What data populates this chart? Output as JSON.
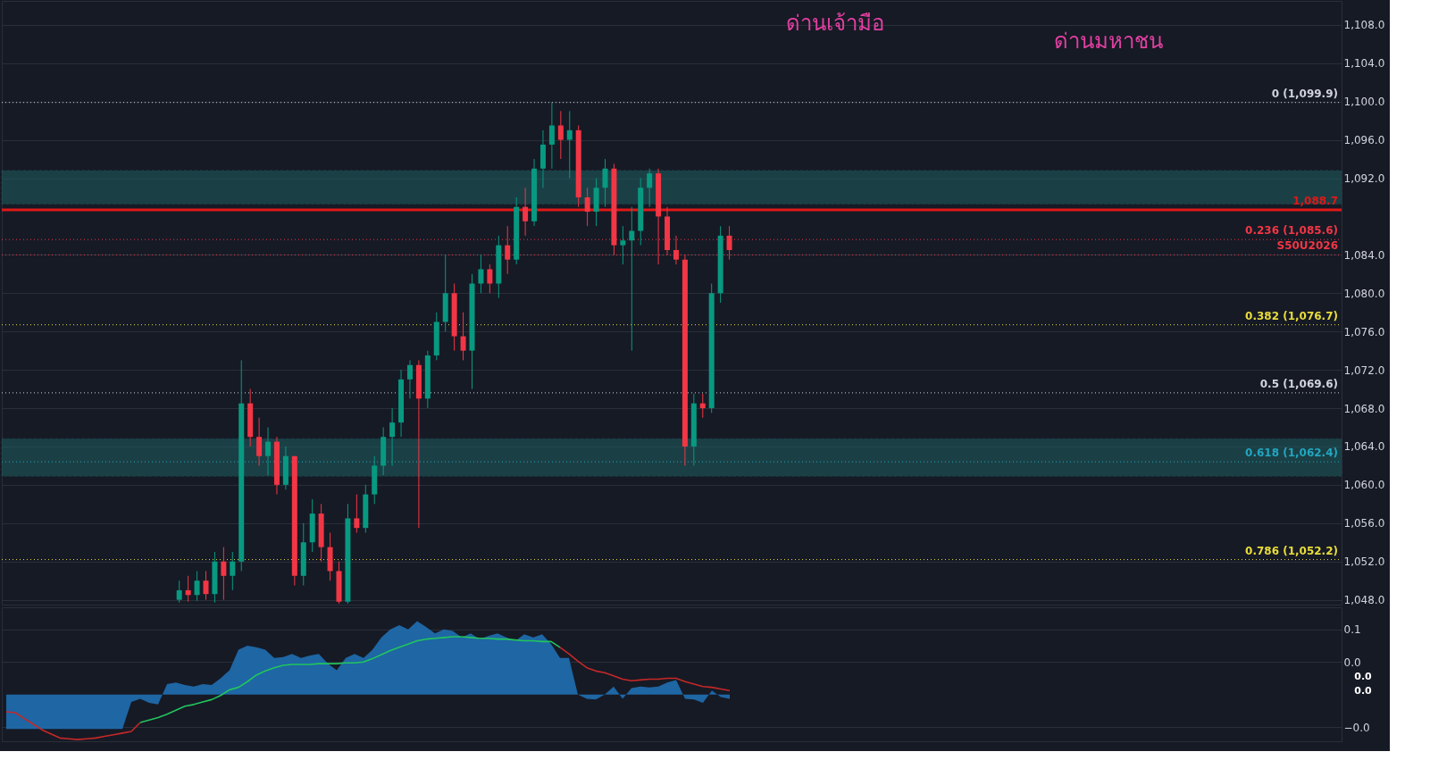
{
  "chart_data": [
    {
      "type": "candlestick",
      "categories": [
        null,
        null,
        null,
        null,
        null,
        null,
        null,
        null,
        null,
        null,
        null,
        null,
        null,
        null,
        null,
        null,
        null,
        null,
        null,
        null,
        null,
        null,
        null,
        null,
        null,
        null,
        null,
        null,
        null,
        null,
        null,
        null,
        null,
        null,
        null,
        null,
        null,
        null,
        null,
        null,
        null,
        null,
        null,
        null,
        null,
        null,
        null,
        null,
        null,
        null,
        null,
        null,
        null,
        null,
        null,
        null,
        null,
        null,
        null,
        null,
        null,
        null,
        null,
        null,
        null,
        null,
        null,
        null,
        null,
        null,
        null,
        null,
        null,
        null,
        null,
        null,
        null,
        null,
        null,
        null,
        null,
        null,
        null,
        null,
        null,
        null,
        null,
        null,
        null,
        null,
        null,
        null,
        null,
        null,
        null,
        null,
        null,
        null,
        null,
        null,
        null,
        null,
        null,
        null,
        null,
        null,
        null,
        null,
        null,
        null,
        null,
        null,
        null,
        null,
        null,
        null,
        null,
        null,
        null,
        null,
        null,
        null,
        null,
        null,
        null,
        null,
        null,
        null,
        null,
        null,
        null,
        null,
        null,
        null,
        null,
        null,
        null,
        null,
        null,
        null,
        null,
        null,
        null,
        null,
        null,
        null,
        null,
        null,
        null,
        null
      ],
      "ohlc": [
        null,
        null,
        null,
        null,
        null,
        null,
        null,
        null,
        null,
        null,
        null,
        null,
        null,
        null,
        null,
        null,
        null,
        null,
        null,
        [
          1048,
          1050,
          1047.7,
          1049
        ],
        [
          1049,
          1050.5,
          1047.8,
          1048.5
        ],
        [
          1048.5,
          1051,
          1047.9,
          1050
        ],
        [
          1050,
          1051,
          1048,
          1048.6
        ],
        [
          1048.6,
          1053,
          1047.7,
          1052
        ],
        [
          1052,
          1053.5,
          1048,
          1050.5
        ],
        [
          1050.5,
          1053,
          1049,
          1052
        ],
        [
          1052,
          1073,
          1051,
          1068.5
        ],
        [
          1068.5,
          1070,
          1064,
          1065
        ],
        [
          1065,
          1067,
          1062,
          1063
        ],
        [
          1063,
          1066,
          1061,
          1064.5
        ],
        [
          1064.5,
          1065,
          1059,
          1060
        ],
        [
          1060,
          1064,
          1059.5,
          1063
        ],
        [
          1063,
          1063,
          1049.5,
          1050.5
        ],
        [
          1050.5,
          1056,
          1049.5,
          1054
        ],
        [
          1054,
          1058.5,
          1053,
          1057
        ],
        [
          1057,
          1058,
          1052,
          1053.5
        ],
        [
          1053.5,
          1055,
          1050,
          1051
        ],
        [
          1051,
          1052,
          1047.6,
          1047.8
        ],
        [
          1047.8,
          1058,
          1047.6,
          1056.5
        ],
        [
          1056.5,
          1059,
          1055,
          1055.5
        ],
        [
          1055.5,
          1060,
          1055,
          1059
        ],
        [
          1059,
          1063,
          1058,
          1062
        ],
        [
          1062,
          1066,
          1061,
          1065
        ],
        [
          1065,
          1068,
          1062,
          1066.5
        ],
        [
          1066.5,
          1072,
          1065,
          1071
        ],
        [
          1071,
          1073,
          1069,
          1072.5
        ],
        [
          1072.5,
          1073,
          1055.5,
          1069
        ],
        [
          1069,
          1074,
          1068,
          1073.5
        ],
        [
          1073.5,
          1078,
          1073,
          1077
        ],
        [
          1077,
          1084,
          1076,
          1080
        ],
        [
          1080,
          1081,
          1074,
          1075.5
        ],
        [
          1075.5,
          1078,
          1073,
          1074
        ],
        [
          1074,
          1082,
          1070,
          1081
        ],
        [
          1081,
          1084,
          1080,
          1082.5
        ],
        [
          1082.5,
          1083,
          1080,
          1081
        ],
        [
          1081,
          1086,
          1079.5,
          1085
        ],
        [
          1085,
          1087,
          1082,
          1083.5
        ],
        [
          1083.5,
          1090,
          1083,
          1089
        ],
        [
          1089,
          1091,
          1086,
          1087.5
        ],
        [
          1087.5,
          1094,
          1087,
          1093
        ],
        [
          1093,
          1097,
          1091,
          1095.5
        ],
        [
          1095.5,
          1099.9,
          1093,
          1097.5
        ],
        [
          1097.5,
          1099,
          1094,
          1096
        ],
        [
          1096,
          1099,
          1092,
          1097
        ],
        [
          1097,
          1097.5,
          1089,
          1090
        ],
        [
          1090,
          1091,
          1087,
          1088.5
        ],
        [
          1088.5,
          1092,
          1087,
          1091
        ],
        [
          1091,
          1094,
          1089,
          1093
        ],
        [
          1093,
          1093.5,
          1084,
          1085
        ],
        [
          1085,
          1087,
          1083,
          1085.5
        ],
        [
          1085.5,
          1089,
          1074,
          1086.5
        ],
        [
          1086.5,
          1092,
          1085,
          1091
        ],
        [
          1091,
          1093,
          1089,
          1092.5
        ],
        [
          1092.5,
          1093,
          1083,
          1088
        ],
        [
          1088,
          1089,
          1084,
          1084.5
        ],
        [
          1084.5,
          1086,
          1083,
          1083.5
        ],
        [
          1083.5,
          1084,
          1062,
          1064
        ],
        [
          1064,
          1069.5,
          1062,
          1068.5
        ],
        [
          1068.5,
          1069.5,
          1067,
          1068
        ],
        [
          1068,
          1081,
          1067.5,
          1080
        ],
        [
          1080,
          1087,
          1079,
          1086
        ],
        [
          1086,
          1087,
          1083.5,
          1084.5
        ],
        null,
        null,
        null,
        null,
        null,
        null,
        null,
        null,
        null,
        null,
        null,
        null,
        null,
        null,
        null,
        null,
        null,
        null,
        null,
        null,
        null,
        null,
        null,
        null,
        null,
        null,
        null,
        null,
        null,
        null,
        null,
        null,
        null,
        null,
        null,
        null,
        null,
        null,
        null,
        null,
        null,
        null,
        null,
        null,
        null,
        null,
        null,
        null,
        null,
        null,
        null,
        null,
        null,
        null,
        null,
        null,
        null,
        null,
        null,
        null,
        null,
        null,
        null,
        null,
        null,
        null,
        null,
        null
      ],
      "colors": [
        null,
        null,
        null,
        null,
        null,
        null,
        null,
        null,
        null,
        null,
        null,
        null,
        null,
        null,
        null,
        null,
        null,
        null,
        null,
        "#089981",
        "#f23645",
        "#089981",
        "#f23645",
        "#089981",
        "#f23645",
        "#089981",
        "#089981",
        "#f23645",
        "#f23645",
        "#089981",
        "#f23645",
        "#089981",
        "#f23645",
        "#089981",
        "#089981",
        "#f23645",
        "#f23645",
        "#f23645",
        "#089981",
        "#f23645",
        "#089981",
        "#089981",
        "#089981",
        "#089981",
        "#089981",
        "#089981",
        "#f23645",
        "#089981",
        "#089981",
        "#089981",
        "#f23645",
        "#f23645",
        "#089981",
        "#089981",
        "#f23645",
        "#089981",
        "#f23645",
        "#089981",
        "#f23645",
        "#089981",
        "#089981",
        "#089981",
        "#f23645",
        "#089981",
        "#f23645",
        "#f23645",
        "#089981",
        "#089981",
        "#f23645",
        "#089981",
        "#089981",
        "#089981",
        "#089981",
        "#f23645",
        "#f23645",
        "#f23645",
        "#f23645",
        "#089981",
        "#f23645",
        "#089981",
        "#089981",
        "#f23645",
        null,
        null,
        null,
        null,
        null,
        null,
        null,
        null,
        null,
        null,
        null,
        null,
        null,
        null,
        null,
        null,
        null,
        null,
        null,
        null,
        null,
        null,
        null,
        null,
        null,
        null,
        null,
        null,
        null,
        null,
        null,
        null,
        null,
        null,
        null,
        null,
        null,
        null,
        null,
        null,
        null,
        null,
        null,
        null,
        null,
        null,
        null,
        null,
        null,
        null,
        null,
        null,
        null,
        null,
        null,
        null,
        null,
        null,
        null,
        null,
        null,
        null,
        null,
        null,
        null,
        null,
        null,
        null
      ],
      "ylim": [
        1047.5,
        1110.5
      ],
      "yticks": [
        {
          "value": 1048,
          "label": "1,048.0"
        },
        {
          "value": 1052,
          "label": "1,052.0"
        },
        {
          "value": 1056,
          "label": "1,056.0"
        },
        {
          "value": 1060,
          "label": "1,060.0"
        },
        {
          "value": 1064,
          "label": "1,064.0"
        },
        {
          "value": 1068,
          "label": "1,068.0"
        },
        {
          "value": 1072,
          "label": "1,072.0"
        },
        {
          "value": 1076,
          "label": "1,076.0"
        },
        {
          "value": 1080,
          "label": "1,080.0"
        },
        {
          "value": 1084,
          "label": "1,084.0"
        },
        {
          "value": 1092,
          "label": "1,092.0"
        },
        {
          "value": 1096,
          "label": "1,096.0"
        },
        {
          "value": 1100,
          "label": "1,100.0"
        },
        {
          "value": 1104,
          "label": "1,104.0"
        },
        {
          "value": 1108,
          "label": "1,108.0"
        }
      ],
      "tick_labels": "y",
      "grid": "y",
      "ref_lines": [
        {
          "axis": "y",
          "value": 1099.9,
          "label": "0 (1,099.9)",
          "color": "#d1d4dc",
          "line_style": "dotted"
        },
        {
          "axis": "y",
          "value": 1085.6,
          "label": "0.236 (1,085.6)",
          "color": "#f23645",
          "line_style": "dotted"
        },
        {
          "axis": "y",
          "value": 1076.7,
          "label": "0.382 (1,076.7)",
          "color": "#e8dc3a",
          "line_style": "dotted"
        },
        {
          "axis": "y",
          "value": 1069.6,
          "label": "0.5 (1,069.6)",
          "color": "#d1d4dc",
          "line_style": "dotted"
        },
        {
          "axis": "y",
          "value": 1062.4,
          "label": "0.618 (1,062.4)",
          "color": "#22a6c0",
          "line_style": "dotted"
        },
        {
          "axis": "y",
          "value": 1052.2,
          "label": "0.786 (1,052.2)",
          "color": "#e8dc3a",
          "line_style": "dotted"
        },
        {
          "axis": "y",
          "value": 1084,
          "label": "S50U2026",
          "color": "#f23645",
          "line_style": "dotted"
        },
        {
          "axis": "y",
          "value": 1088.7,
          "label": "1,088.7",
          "color": "#e01818",
          "line_style": "solid"
        }
      ],
      "bands": [
        {
          "axis": "y",
          "from": 1089.3,
          "to": 1092.8,
          "color": "#1f5f62"
        },
        {
          "axis": "y",
          "from": 1060.9,
          "to": 1064.8,
          "color": "#1f5f62"
        }
      ],
      "annotations": [
        "ด่านเจ้ามือ",
        "ด่านมหาชน"
      ]
    },
    {
      "type": "area",
      "categories": [
        null,
        null,
        null,
        null,
        null,
        null,
        null,
        null,
        null,
        null,
        null,
        null,
        null,
        null,
        null,
        null,
        null,
        null,
        null,
        null,
        null,
        null,
        null,
        null,
        null,
        null,
        null,
        null,
        null,
        null,
        null,
        null,
        null,
        null,
        null,
        null,
        null,
        null,
        null,
        null,
        null,
        null,
        null,
        null,
        null,
        null,
        null,
        null,
        null,
        null,
        null,
        null,
        null,
        null,
        null,
        null,
        null,
        null,
        null,
        null,
        null,
        null,
        null,
        null,
        null,
        null,
        null,
        null,
        null,
        null,
        null,
        null,
        null,
        null,
        null,
        null,
        null,
        null,
        null,
        null,
        null,
        null,
        null,
        null,
        null,
        null,
        null,
        null,
        null,
        null,
        null,
        null,
        null,
        null,
        null,
        null,
        null,
        null,
        null,
        null,
        null,
        null,
        null,
        null,
        null,
        null,
        null,
        null,
        null,
        null,
        null,
        null,
        null,
        null,
        null,
        null,
        null,
        null,
        null,
        null,
        null,
        null,
        null,
        null,
        null,
        null,
        null,
        null,
        null,
        null,
        null,
        null,
        null,
        null,
        null,
        null,
        null,
        null,
        null,
        null,
        null,
        null,
        null,
        null,
        null,
        null,
        null,
        null,
        null,
        null
      ],
      "series": [
        {
          "type": "area",
          "color": "#1f6fb3",
          "values": [
            -0.042,
            -0.042,
            -0.042,
            -0.042,
            -0.042,
            -0.042,
            -0.042,
            -0.042,
            -0.042,
            -0.042,
            -0.042,
            -0.042,
            -0.042,
            -0.042,
            -0.009,
            -0.005,
            -0.01,
            -0.012,
            0.013,
            0.015,
            0.012,
            0.01,
            0.013,
            0.012,
            0.02,
            0.03,
            0.055,
            0.06,
            0.058,
            0.055,
            0.045,
            0.046,
            0.05,
            0.045,
            0.048,
            0.05,
            0.038,
            0.03,
            0.045,
            0.05,
            0.045,
            0.055,
            0.07,
            0.08,
            0.085,
            0.08,
            0.09,
            0.083,
            0.075,
            0.08,
            0.078,
            0.07,
            0.075,
            0.068,
            0.072,
            0.075,
            0.07,
            0.066,
            0.074,
            0.07,
            0.074,
            0.062,
            0.045,
            0.045,
            0.0,
            -0.005,
            -0.006,
            0.0,
            0.01,
            -0.005,
            0.008,
            0.01,
            0.009,
            0.01,
            0.015,
            0.018,
            -0.005,
            -0.006,
            -0.01,
            0.005,
            -0.003,
            -0.005,
            null,
            null,
            null,
            null,
            null,
            null,
            null,
            null,
            null,
            null,
            null,
            null,
            null,
            null,
            null,
            null,
            null,
            null,
            null,
            null,
            null,
            null,
            null,
            null,
            null,
            null,
            null,
            null,
            null,
            null,
            null,
            null,
            null,
            null,
            null,
            null,
            null,
            null,
            null,
            null,
            null,
            null,
            null,
            null,
            null,
            null,
            null,
            null,
            null,
            null,
            null,
            null,
            null,
            null,
            null,
            null,
            null,
            null,
            null,
            null,
            null,
            null,
            null,
            null,
            null,
            null,
            null,
            null
          ]
        },
        {
          "type": "line",
          "color": "#c62828",
          "values": [
            -0.021,
            -0.022,
            -0.029,
            -0.036,
            -0.043,
            -0.048,
            -0.053,
            -0.054,
            -0.055,
            -0.054,
            -0.053,
            -0.051,
            -0.049,
            -0.047,
            -0.045,
            -0.034,
            null,
            null,
            null,
            null,
            null,
            null,
            null,
            null,
            null,
            null,
            null,
            null,
            null,
            null,
            null,
            null,
            null,
            null,
            null,
            null,
            null,
            null,
            null,
            null,
            null,
            null,
            null,
            null,
            null,
            null,
            null,
            null,
            null,
            null,
            null,
            null,
            null,
            null,
            null,
            null,
            null,
            null,
            null,
            null,
            null,
            null,
            null,
            null,
            null,
            null,
            null,
            null,
            null,
            null,
            null,
            null,
            null,
            null,
            null,
            null,
            null,
            null,
            null,
            null,
            null,
            null,
            null,
            null,
            null,
            null,
            null,
            null,
            null,
            null,
            null,
            null,
            null,
            null,
            null,
            null,
            null,
            null,
            null,
            null,
            null,
            null,
            null,
            null,
            null,
            null,
            null,
            null,
            null,
            null,
            null,
            null,
            null,
            null,
            null,
            null,
            null,
            null,
            null,
            null,
            null,
            null,
            null,
            null,
            null,
            null,
            null,
            null,
            null,
            null,
            null,
            null,
            null,
            null,
            null,
            null,
            null,
            null,
            null,
            null,
            null,
            null,
            null,
            null,
            null,
            null,
            null,
            null,
            null,
            null
          ]
        },
        {
          "type": "line",
          "color": "#22c55e",
          "values": [
            null,
            null,
            null,
            null,
            null,
            null,
            null,
            null,
            null,
            null,
            null,
            null,
            null,
            null,
            null,
            -0.034,
            -0.031,
            -0.028,
            -0.024,
            -0.019,
            -0.014,
            -0.012,
            -0.009,
            -0.006,
            -0.001,
            0.006,
            0.009,
            0.016,
            0.024,
            0.029,
            0.033,
            0.036,
            0.037,
            0.037,
            0.037,
            0.038,
            0.038,
            0.038,
            0.039,
            0.039,
            0.04,
            0.044,
            0.049,
            0.054,
            0.058,
            0.062,
            0.066,
            0.068,
            0.069,
            0.07,
            0.071,
            0.071,
            0.07,
            0.069,
            0.069,
            0.068,
            0.068,
            0.067,
            0.066,
            0.066,
            0.065,
            0.065,
            0.058,
            null,
            null,
            null,
            null,
            null,
            null,
            null,
            null,
            null,
            null,
            null,
            null,
            null,
            null,
            null,
            null,
            null,
            null,
            null,
            null,
            null,
            null,
            null,
            null,
            null,
            null,
            null,
            null,
            null,
            null,
            null,
            null,
            null,
            null,
            null,
            null,
            null,
            null,
            null,
            null,
            null,
            null,
            null,
            null,
            null,
            null,
            null,
            null,
            null,
            null,
            null,
            null,
            null,
            null,
            null,
            null,
            null,
            null,
            null,
            null,
            null,
            null,
            null,
            null,
            null,
            null,
            null,
            null,
            null,
            null,
            null,
            null,
            null,
            null,
            null,
            null,
            null,
            null,
            null,
            null,
            null,
            null,
            null,
            null,
            null,
            null,
            null
          ]
        },
        {
          "type": "line",
          "color": "#c62828",
          "values": [
            null,
            null,
            null,
            null,
            null,
            null,
            null,
            null,
            null,
            null,
            null,
            null,
            null,
            null,
            null,
            null,
            null,
            null,
            null,
            null,
            null,
            null,
            null,
            null,
            null,
            null,
            null,
            null,
            null,
            null,
            null,
            null,
            null,
            null,
            null,
            null,
            null,
            null,
            null,
            null,
            null,
            null,
            null,
            null,
            null,
            null,
            null,
            null,
            null,
            null,
            null,
            null,
            null,
            null,
            null,
            null,
            null,
            null,
            null,
            null,
            null,
            null,
            0.058,
            0.05,
            0.041,
            0.033,
            0.029,
            0.027,
            0.023,
            0.019,
            0.017,
            0.018,
            0.019,
            0.019,
            0.02,
            0.02,
            0.016,
            0.013,
            0.01,
            0.009,
            0.007,
            0.005,
            null,
            null,
            null,
            null,
            null,
            null,
            null,
            null,
            null,
            null,
            null,
            null,
            null,
            null,
            null,
            null,
            null,
            null,
            null,
            null,
            null,
            null,
            null,
            null,
            null,
            null,
            null,
            null,
            null,
            null,
            null,
            null,
            null,
            null,
            null,
            null,
            null,
            null,
            null,
            null,
            null,
            null,
            null,
            null,
            null,
            null,
            null,
            null,
            null,
            null,
            null,
            null,
            null,
            null,
            null,
            null,
            null,
            null,
            null,
            null,
            null,
            null,
            null,
            null,
            null,
            null,
            null,
            null
          ]
        }
      ],
      "ylim": [
        -0.057,
        0.107
      ],
      "yticks": [
        {
          "value": 0.08,
          "label": "0.1"
        },
        {
          "value": 0.04,
          "label": "0.0"
        },
        {
          "value": -0.04,
          "label": "−0.0"
        }
      ],
      "tick_labels": "y",
      "grid": "y",
      "annotations": [
        "0.0",
        "0.0"
      ]
    }
  ]
}
